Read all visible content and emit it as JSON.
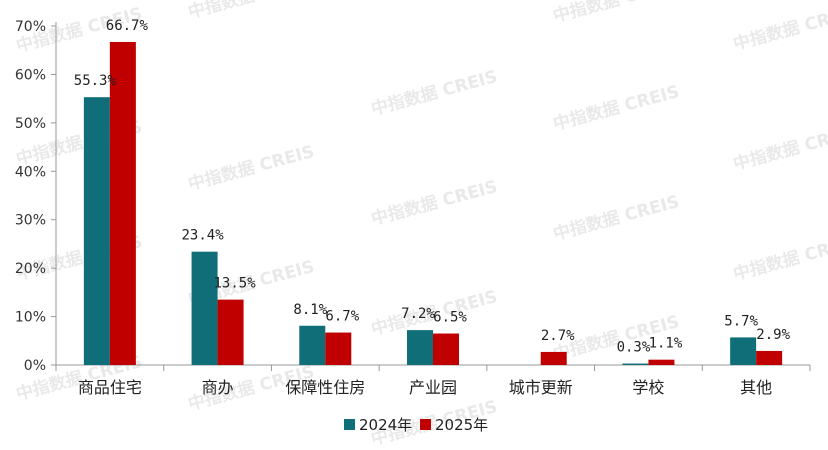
{
  "chart_data": {
    "type": "bar",
    "categories": [
      "商品住宅",
      "商办",
      "保障性住房",
      "产业园",
      "城市更新",
      "学校",
      "其他"
    ],
    "series": [
      {
        "name": "2024年",
        "values": [
          55.3,
          23.4,
          8.1,
          7.2,
          0,
          0.3,
          5.7
        ],
        "labels": [
          "55.3%",
          "23.4%",
          "8.1%",
          "7.2%",
          "",
          "0.3%",
          "5.7%"
        ]
      },
      {
        "name": "2025年",
        "values": [
          66.7,
          13.5,
          6.7,
          6.5,
          2.7,
          1.1,
          2.9
        ],
        "labels": [
          "66.7%",
          "13.5%",
          "6.7%",
          "6.5%",
          "2.7%",
          "1.1%",
          "2.9%"
        ]
      }
    ],
    "yticks": [
      "0%",
      "10%",
      "20%",
      "30%",
      "40%",
      "50%",
      "60%",
      "70%"
    ],
    "ylim": [
      0,
      70
    ],
    "legend_position": "bottom-center",
    "grid": false
  },
  "colors": {
    "s2024": "#0f6e78",
    "s2025": "#c00000",
    "axis": "#999999"
  },
  "watermark": "中指数据 CREIS"
}
